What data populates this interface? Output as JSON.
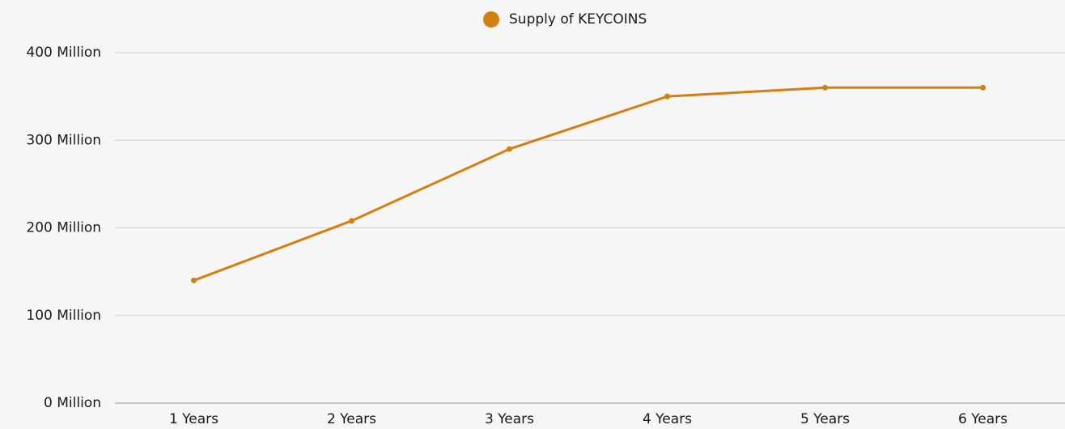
{
  "chart_data": {
    "type": "line",
    "categories": [
      "1 Years",
      "2 Years",
      "3 Years",
      "4 Years",
      "5 Years",
      "6 Years"
    ],
    "series": [
      {
        "name": "Supply of KEYCOINS",
        "color": "#d4800f",
        "values": [
          140,
          208,
          290,
          350,
          360,
          360
        ]
      }
    ],
    "ylim": [
      0,
      400
    ],
    "yticks": [
      {
        "value": 0,
        "label": "0 Million"
      },
      {
        "value": 100,
        "label": "100 Million"
      },
      {
        "value": 200,
        "label": "200 Million"
      },
      {
        "value": 300,
        "label": "300 Million"
      },
      {
        "value": 400,
        "label": "400 Million"
      }
    ],
    "grid": true,
    "legend": "top"
  }
}
